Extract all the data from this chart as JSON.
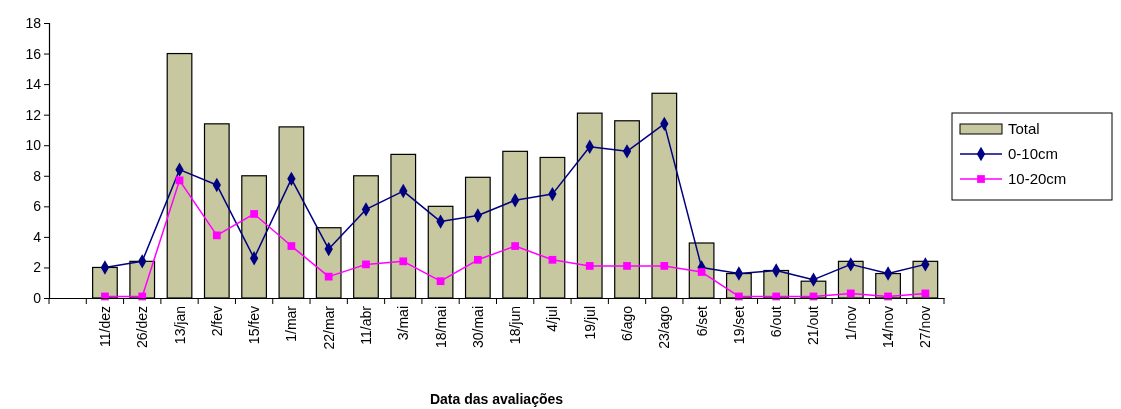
{
  "chart_data": {
    "type": "bar",
    "xlabel": "Data das avaliações",
    "categories": [
      null,
      "11/dez",
      "26/dez",
      "13/jan",
      "2/fev",
      "15/fev",
      "1/mar",
      "22/mar",
      "11/abr",
      "3/mai",
      "18/mai",
      "30/mai",
      "18/jun",
      "4/jul",
      "19/jul",
      "6/ago",
      "23/ago",
      "6/set",
      "19/set",
      "6/out",
      "21/out",
      "1/nov",
      "14/nov",
      "27/nov"
    ],
    "series": [
      {
        "name": "Total",
        "color": "#c8c8a0",
        "values": [
          null,
          2.0,
          2.4,
          16,
          11.4,
          8,
          11.2,
          4.6,
          8,
          9.4,
          6,
          7.9,
          9.6,
          9.2,
          12.1,
          11.6,
          13.4,
          3.6,
          1.6,
          1.8,
          1.1,
          2.4,
          1.6,
          2.4
        ]
      },
      {
        "name": "0-10cm",
        "type": "line",
        "color": "#000080",
        "marker": "diamond",
        "values": [
          null,
          2.0,
          2.4,
          8.4,
          7.4,
          2.6,
          7.8,
          3.2,
          5.8,
          7.0,
          5.0,
          5.4,
          6.4,
          6.8,
          9.9,
          9.6,
          11.4,
          2.0,
          1.6,
          1.8,
          1.2,
          2.2,
          1.6,
          2.2
        ]
      },
      {
        "name": "10-20cm",
        "type": "line",
        "color": "#ff00ff",
        "marker": "square",
        "values": [
          null,
          0.1,
          0.1,
          7.7,
          4.1,
          5.5,
          3.4,
          1.4,
          2.2,
          2.4,
          1.1,
          2.5,
          3.4,
          2.5,
          2.1,
          2.1,
          2.1,
          1.7,
          0.1,
          0.1,
          0.1,
          0.3,
          0.1,
          0.3
        ]
      }
    ],
    "ylim": [
      0,
      18
    ],
    "yticks": [
      0,
      2,
      4,
      6,
      8,
      10,
      12,
      14,
      16,
      18
    ],
    "grid": false,
    "legend": "right"
  }
}
